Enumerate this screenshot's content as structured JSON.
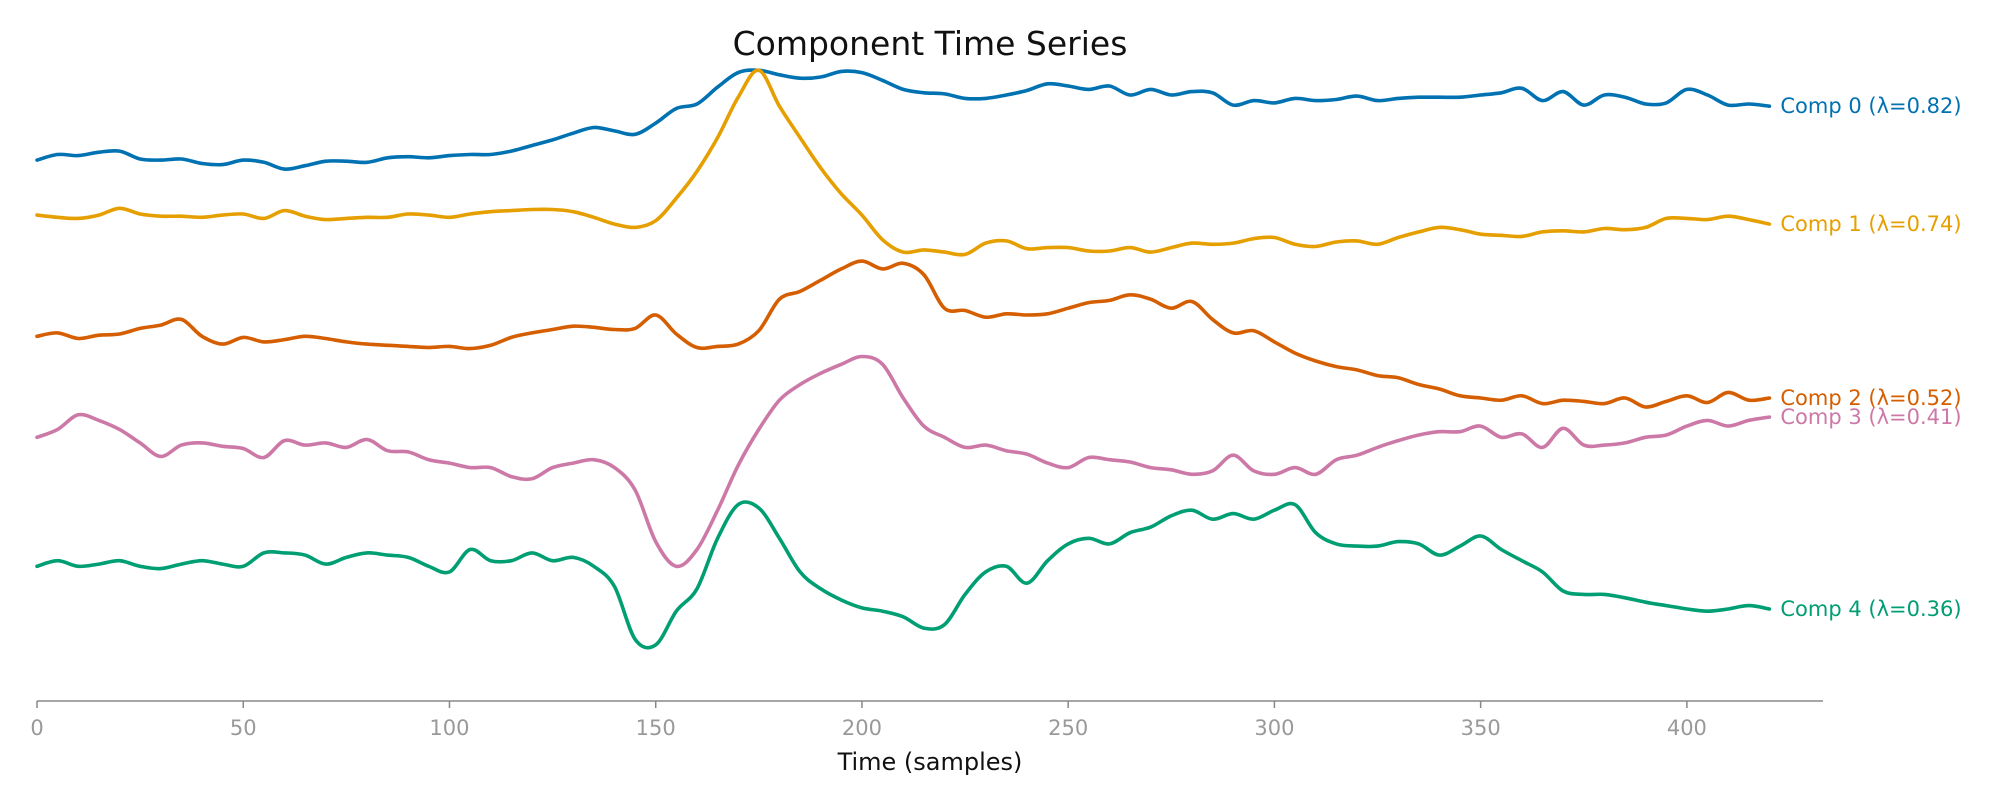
{
  "chart_data": {
    "type": "line",
    "title": "Component Time Series",
    "xlabel": "Time (samples)",
    "ylabel": "",
    "xlim": [
      0,
      433
    ],
    "ylim": [
      -0.2,
      5.2
    ],
    "xticks": [
      0,
      50,
      100,
      150,
      200,
      250,
      300,
      350,
      400
    ],
    "grid": false,
    "legend": "inline labels at right end of each line",
    "series": [
      {
        "name": "Comp 0 (λ=0.82)",
        "color": "#0072B2",
        "x": [
          0,
          5,
          10,
          15,
          20,
          25,
          30,
          35,
          40,
          45,
          50,
          55,
          60,
          65,
          70,
          75,
          80,
          85,
          90,
          95,
          100,
          105,
          110,
          115,
          120,
          125,
          130,
          135,
          140,
          145,
          150,
          155,
          160,
          165,
          170,
          175,
          180,
          185,
          190,
          195,
          200,
          205,
          210,
          215,
          220,
          225,
          230,
          235,
          240,
          245,
          250,
          255,
          260,
          265,
          270,
          275,
          280,
          285,
          290,
          295,
          300,
          305,
          310,
          315,
          320,
          325,
          330,
          335,
          340,
          345,
          350,
          355,
          360,
          365,
          370,
          375,
          380,
          385,
          390,
          395,
          400,
          405,
          410,
          415,
          420
        ],
        "values": [
          4.62,
          4.67,
          4.66,
          4.69,
          4.7,
          4.63,
          4.62,
          4.63,
          4.59,
          4.58,
          4.62,
          4.6,
          4.54,
          4.57,
          4.61,
          4.61,
          4.6,
          4.64,
          4.65,
          4.64,
          4.66,
          4.67,
          4.67,
          4.7,
          4.75,
          4.8,
          4.86,
          4.91,
          4.88,
          4.85,
          4.95,
          5.08,
          5.12,
          5.27,
          5.4,
          5.42,
          5.38,
          5.35,
          5.36,
          5.41,
          5.4,
          5.33,
          5.25,
          5.22,
          5.21,
          5.17,
          5.17,
          5.2,
          5.24,
          5.3,
          5.28,
          5.25,
          5.28,
          5.2,
          5.25,
          5.2,
          5.23,
          5.22,
          5.11,
          5.15,
          5.13,
          5.17,
          5.15,
          5.16,
          5.19,
          5.15,
          5.17,
          5.18,
          5.18,
          5.18,
          5.2,
          5.22,
          5.26,
          5.15,
          5.23,
          5.11,
          5.2,
          5.18,
          5.12,
          5.13,
          5.25,
          5.2,
          5.11,
          5.12,
          5.1
        ]
      },
      {
        "name": "Comp 1 (λ=0.74)",
        "color": "#E69F00",
        "x": [
          0,
          5,
          10,
          15,
          20,
          25,
          30,
          35,
          40,
          45,
          50,
          55,
          60,
          65,
          70,
          75,
          80,
          85,
          90,
          95,
          100,
          105,
          110,
          115,
          120,
          125,
          130,
          135,
          140,
          145,
          150,
          155,
          160,
          165,
          170,
          175,
          180,
          185,
          190,
          195,
          200,
          205,
          210,
          215,
          220,
          225,
          230,
          235,
          240,
          245,
          250,
          255,
          260,
          265,
          270,
          275,
          280,
          285,
          290,
          295,
          300,
          305,
          310,
          315,
          320,
          325,
          330,
          335,
          340,
          345,
          350,
          355,
          360,
          365,
          370,
          375,
          380,
          385,
          390,
          395,
          400,
          405,
          410,
          415,
          420
        ],
        "values": [
          4.13,
          4.11,
          4.1,
          4.13,
          4.19,
          4.14,
          4.12,
          4.12,
          4.11,
          4.13,
          4.14,
          4.1,
          4.17,
          4.12,
          4.09,
          4.1,
          4.11,
          4.11,
          4.14,
          4.13,
          4.11,
          4.14,
          4.16,
          4.17,
          4.18,
          4.18,
          4.16,
          4.11,
          4.05,
          4.02,
          4.08,
          4.28,
          4.52,
          4.82,
          5.18,
          5.42,
          5.1,
          4.82,
          4.55,
          4.32,
          4.13,
          3.91,
          3.8,
          3.82,
          3.8,
          3.78,
          3.88,
          3.9,
          3.83,
          3.84,
          3.84,
          3.81,
          3.81,
          3.84,
          3.8,
          3.84,
          3.88,
          3.87,
          3.88,
          3.92,
          3.93,
          3.87,
          3.85,
          3.89,
          3.9,
          3.87,
          3.93,
          3.98,
          4.02,
          4.0,
          3.96,
          3.95,
          3.94,
          3.98,
          3.99,
          3.98,
          4.01,
          4.0,
          4.02,
          4.1,
          4.1,
          4.09,
          4.12,
          4.09,
          4.05
        ]
      },
      {
        "name": "Comp 2 (λ=0.52)",
        "color": "#D55E00",
        "x": [
          0,
          5,
          10,
          15,
          20,
          25,
          30,
          35,
          40,
          45,
          50,
          55,
          60,
          65,
          70,
          75,
          80,
          85,
          90,
          95,
          100,
          105,
          110,
          115,
          120,
          125,
          130,
          135,
          140,
          145,
          150,
          155,
          160,
          165,
          170,
          175,
          180,
          185,
          190,
          195,
          200,
          205,
          210,
          215,
          220,
          225,
          230,
          235,
          240,
          245,
          250,
          255,
          260,
          265,
          270,
          275,
          280,
          285,
          290,
          295,
          300,
          305,
          310,
          315,
          320,
          325,
          330,
          335,
          340,
          345,
          350,
          355,
          360,
          365,
          370,
          375,
          380,
          385,
          390,
          395,
          400,
          405,
          410,
          415,
          420
        ],
        "values": [
          3.05,
          3.08,
          3.03,
          3.06,
          3.07,
          3.12,
          3.15,
          3.2,
          3.05,
          2.98,
          3.04,
          3.0,
          3.02,
          3.05,
          3.03,
          3.0,
          2.98,
          2.97,
          2.96,
          2.95,
          2.96,
          2.94,
          2.97,
          3.04,
          3.08,
          3.11,
          3.14,
          3.13,
          3.11,
          3.12,
          3.24,
          3.07,
          2.95,
          2.96,
          2.98,
          3.1,
          3.38,
          3.45,
          3.55,
          3.65,
          3.72,
          3.65,
          3.7,
          3.6,
          3.3,
          3.28,
          3.22,
          3.25,
          3.24,
          3.25,
          3.3,
          3.35,
          3.37,
          3.42,
          3.38,
          3.3,
          3.36,
          3.2,
          3.08,
          3.1,
          3.0,
          2.9,
          2.83,
          2.78,
          2.75,
          2.7,
          2.68,
          2.62,
          2.58,
          2.52,
          2.5,
          2.48,
          2.52,
          2.45,
          2.48,
          2.47,
          2.45,
          2.5,
          2.42,
          2.47,
          2.52,
          2.46,
          2.55,
          2.48,
          2.5
        ]
      },
      {
        "name": "Comp 3 (λ=0.41)",
        "color": "#CC79A7",
        "x": [
          0,
          5,
          10,
          15,
          20,
          25,
          30,
          35,
          40,
          45,
          50,
          55,
          60,
          65,
          70,
          75,
          80,
          85,
          90,
          95,
          100,
          105,
          110,
          115,
          120,
          125,
          130,
          135,
          140,
          145,
          150,
          155,
          160,
          165,
          170,
          175,
          180,
          185,
          190,
          195,
          200,
          205,
          210,
          215,
          220,
          225,
          230,
          235,
          240,
          245,
          250,
          255,
          260,
          265,
          270,
          275,
          280,
          285,
          290,
          295,
          300,
          305,
          310,
          315,
          320,
          325,
          330,
          335,
          340,
          345,
          350,
          355,
          360,
          365,
          370,
          375,
          380,
          385,
          390,
          395,
          400,
          405,
          410,
          415,
          420
        ],
        "values": [
          2.15,
          2.22,
          2.35,
          2.3,
          2.22,
          2.1,
          1.98,
          2.08,
          2.1,
          2.07,
          2.05,
          1.97,
          2.12,
          2.08,
          2.1,
          2.06,
          2.13,
          2.03,
          2.02,
          1.95,
          1.92,
          1.88,
          1.88,
          1.8,
          1.78,
          1.88,
          1.92,
          1.95,
          1.88,
          1.68,
          1.22,
          1.0,
          1.15,
          1.5,
          1.9,
          2.22,
          2.48,
          2.62,
          2.72,
          2.8,
          2.87,
          2.8,
          2.5,
          2.25,
          2.15,
          2.06,
          2.08,
          2.03,
          2.0,
          1.92,
          1.88,
          1.97,
          1.95,
          1.93,
          1.88,
          1.86,
          1.82,
          1.85,
          1.99,
          1.85,
          1.82,
          1.88,
          1.82,
          1.95,
          1.99,
          2.06,
          2.12,
          2.17,
          2.2,
          2.2,
          2.25,
          2.15,
          2.18,
          2.06,
          2.23,
          2.08,
          2.08,
          2.1,
          2.15,
          2.17,
          2.25,
          2.3,
          2.25,
          2.3,
          2.33
        ]
      },
      {
        "name": "Comp 4 (λ=0.36)",
        "color": "#009E73",
        "x": [
          0,
          5,
          10,
          15,
          20,
          25,
          30,
          35,
          40,
          45,
          50,
          55,
          60,
          65,
          70,
          75,
          80,
          85,
          90,
          95,
          100,
          105,
          110,
          115,
          120,
          125,
          130,
          135,
          140,
          145,
          150,
          155,
          160,
          165,
          170,
          175,
          180,
          185,
          190,
          195,
          200,
          205,
          210,
          215,
          220,
          225,
          230,
          235,
          240,
          245,
          250,
          255,
          260,
          265,
          270,
          275,
          280,
          285,
          290,
          295,
          300,
          305,
          310,
          315,
          320,
          325,
          330,
          335,
          340,
          345,
          350,
          355,
          360,
          365,
          370,
          375,
          380,
          385,
          390,
          395,
          400,
          405,
          410,
          415,
          420
        ],
        "values": [
          1.0,
          1.05,
          1.0,
          1.02,
          1.05,
          1.0,
          0.98,
          1.02,
          1.05,
          1.02,
          1.0,
          1.12,
          1.12,
          1.1,
          1.02,
          1.08,
          1.12,
          1.1,
          1.08,
          1.0,
          0.95,
          1.15,
          1.05,
          1.05,
          1.12,
          1.05,
          1.08,
          1.0,
          0.82,
          0.35,
          0.3,
          0.6,
          0.8,
          1.25,
          1.55,
          1.52,
          1.25,
          0.95,
          0.8,
          0.7,
          0.63,
          0.6,
          0.55,
          0.45,
          0.48,
          0.75,
          0.95,
          1.0,
          0.85,
          1.05,
          1.2,
          1.25,
          1.2,
          1.3,
          1.35,
          1.45,
          1.5,
          1.42,
          1.47,
          1.42,
          1.5,
          1.55,
          1.3,
          1.2,
          1.18,
          1.18,
          1.22,
          1.2,
          1.1,
          1.18,
          1.27,
          1.15,
          1.05,
          0.95,
          0.78,
          0.75,
          0.75,
          0.72,
          0.68,
          0.65,
          0.62,
          0.6,
          0.62,
          0.65,
          0.62
        ]
      }
    ]
  }
}
